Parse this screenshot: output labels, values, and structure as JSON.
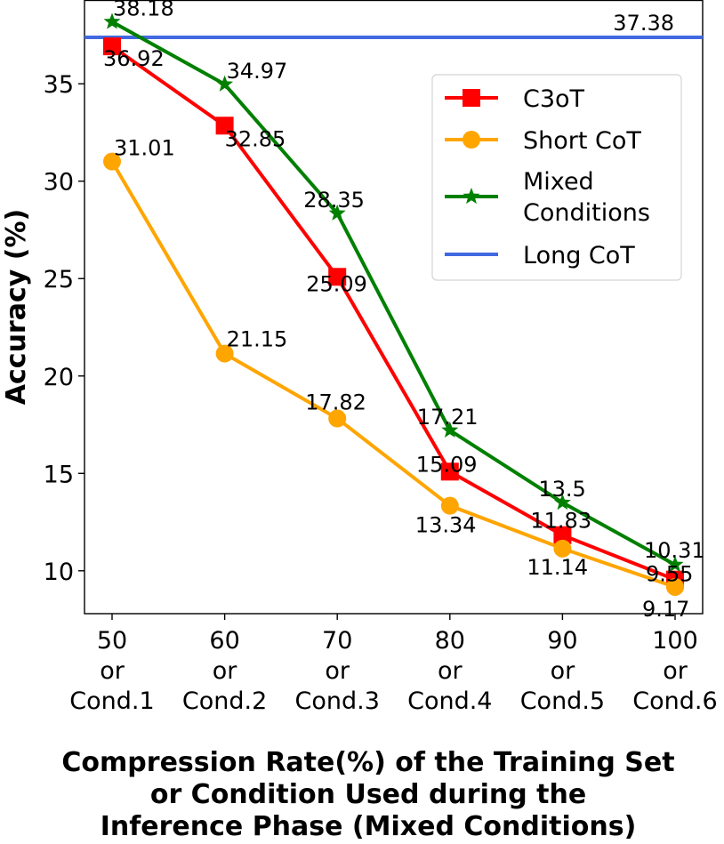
{
  "chart_data": {
    "type": "line",
    "title": "",
    "ylabel": "Accuracy (%)",
    "xlabel_lines": [
      "Compression Rate(%) of the Training Set",
      "or Condition Used during the",
      "Inference Phase (Mixed Conditions)"
    ],
    "ylim": [
      7.8,
      39.3
    ],
    "yticks": [
      10,
      15,
      20,
      25,
      30,
      35
    ],
    "categories": [
      [
        "50",
        "or",
        "Cond.1"
      ],
      [
        "60",
        "or",
        "Cond.2"
      ],
      [
        "70",
        "or",
        "Cond.3"
      ],
      [
        "80",
        "or",
        "Cond.4"
      ],
      [
        "90",
        "or",
        "Cond.5"
      ],
      [
        "100",
        "or",
        "Cond.6"
      ]
    ],
    "series": [
      {
        "name": "C3oT",
        "color": "#ff0000",
        "marker": "square",
        "values": [
          36.92,
          32.85,
          25.09,
          15.09,
          11.83,
          9.55
        ],
        "labels": [
          "36.92",
          "32.85",
          "25.09",
          "15.09",
          "11.83",
          "9.55"
        ]
      },
      {
        "name": "Short CoT",
        "color": "#ffa500",
        "marker": "circle",
        "values": [
          31.01,
          21.15,
          17.82,
          13.34,
          11.14,
          9.17
        ],
        "labels": [
          "31.01",
          "21.15",
          "17.82",
          "13.34",
          "11.14",
          "9.17"
        ]
      },
      {
        "name": "Mixed Conditions",
        "legend_lines": [
          "Mixed",
          "Conditions"
        ],
        "color": "#008000",
        "marker": "star",
        "values": [
          38.18,
          34.97,
          28.35,
          17.21,
          13.5,
          10.31
        ],
        "labels": [
          "38.18",
          "34.97",
          "28.35",
          "17.21",
          "13.5",
          "10.31"
        ]
      }
    ],
    "reference_line": {
      "name": "Long CoT",
      "color": "#4169e1",
      "value": 37.38,
      "label": "37.38"
    },
    "legend_position": "upper-right",
    "grid": false
  }
}
